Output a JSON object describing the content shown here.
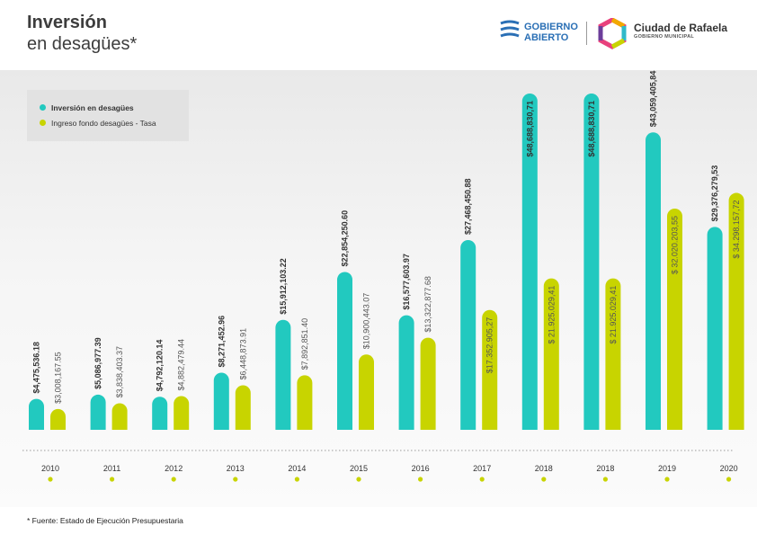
{
  "header": {
    "title": "Inversión",
    "subtitle": "en desagües*"
  },
  "logos": {
    "gobierno_abierto": [
      "GOBIERNO",
      "ABIERTO"
    ],
    "ciudad_name": "Ciudad de Rafaela",
    "ciudad_sub": "GOBIERNO MUNICIPAL"
  },
  "legend": {
    "items": [
      {
        "label": "Inversión en desagües",
        "color": "#22c9bf"
      },
      {
        "label": "Ingreso fondo desagües - Tasa",
        "color": "#c8d400"
      }
    ]
  },
  "chart_data": {
    "type": "bar",
    "categories": [
      "2010",
      "2011",
      "2012",
      "2013",
      "2014",
      "2015",
      "2016",
      "2017",
      "2018",
      "2018",
      "2019",
      "2020"
    ],
    "series": [
      {
        "name": "Inversión en desagües",
        "color": "#22c9bf",
        "values": [
          4475536.18,
          5086977.39,
          4792120.14,
          8271452.96,
          15912103.22,
          22854250.6,
          16577603.97,
          27468450.88,
          48688830.71,
          48688830.71,
          43059405.84,
          29376279.53
        ],
        "labels": [
          "$4,475,536.18",
          "$5,086,977.39",
          "$4,792,120.14",
          "$8,271,452.96",
          "$15,912,103.22",
          "$22,854,250.60",
          "$16,577,603.97",
          "$27,468,450.88",
          "$48,688,830,71",
          "$48,688,830,71",
          "$43,059,405,84",
          "$29,376,279,53"
        ]
      },
      {
        "name": "Ingreso fondo desagües - Tasa",
        "color": "#c8d400",
        "values": [
          3008167.55,
          3838403.37,
          4882479.44,
          6448873.91,
          7892851.4,
          10900443.07,
          13322877.68,
          17352905.27,
          21925029.41,
          21925029.41,
          32020203.55,
          34298157.72
        ],
        "labels": [
          "$3,008,167.55",
          "$3,838,403.37",
          "$4,882,479.44",
          "$6,448,873.91",
          "$7,892,851.40",
          "$10,900,443.07",
          "$13,322,877.68",
          "$17.352.905,27",
          "$ 21.925.029,41",
          "$ 21.925.029,41",
          "$ 32.020.203,55",
          "$ 34.298.157,72"
        ]
      }
    ]
  },
  "footnote": "* Fuente: Estado de Ejecución Presupuestaria"
}
